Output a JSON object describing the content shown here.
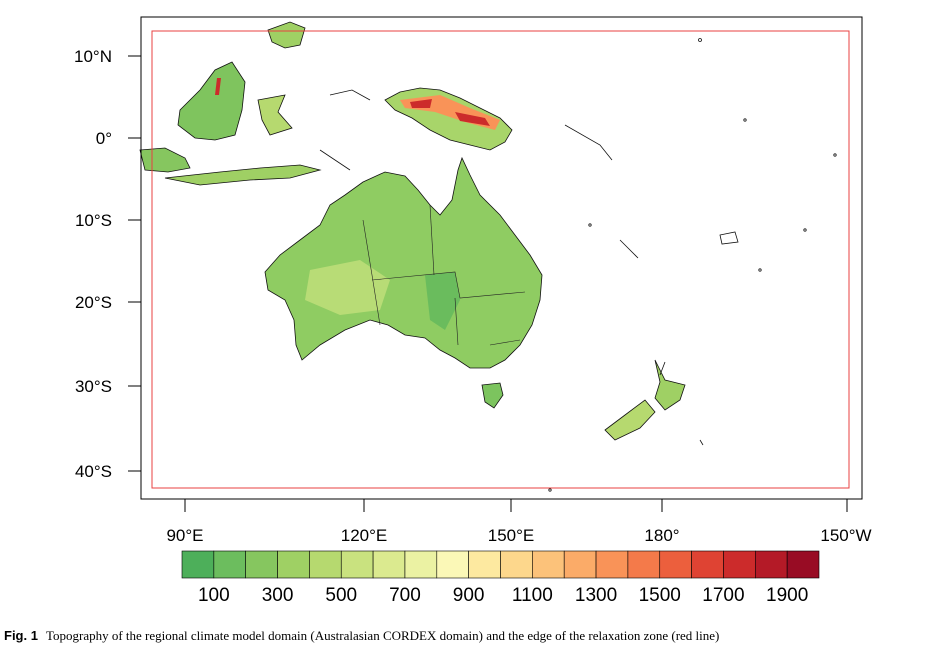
{
  "map": {
    "lat_labels": [
      "10°N",
      "0°",
      "10°S",
      "20°S",
      "30°S",
      "40°S"
    ],
    "lon_labels": [
      "90°E",
      "120°E",
      "150°E",
      "180°",
      "150°W"
    ],
    "relaxation_zone_color": "#e84040",
    "colorbar": {
      "colors": [
        "#4daf5a",
        "#6cbd5e",
        "#86c65f",
        "#9fd064",
        "#b6d96f",
        "#c9e27f",
        "#dbea8f",
        "#ebf2a3",
        "#fbf8b7",
        "#fde9a0",
        "#fdd78c",
        "#fcc27a",
        "#fbab68",
        "#f99358",
        "#f47a4a",
        "#ec5f3d",
        "#df4333",
        "#cc2b2b",
        "#b41a27",
        "#980c24"
      ],
      "tick_labels": [
        "100",
        "300",
        "500",
        "700",
        "900",
        "1100",
        "1300",
        "1500",
        "1700",
        "1900"
      ]
    }
  },
  "caption": {
    "label": "Fig. 1",
    "text": "Topography of the regional climate model domain (Australasian CORDEX domain) and the edge of the relaxation zone (red line)"
  }
}
